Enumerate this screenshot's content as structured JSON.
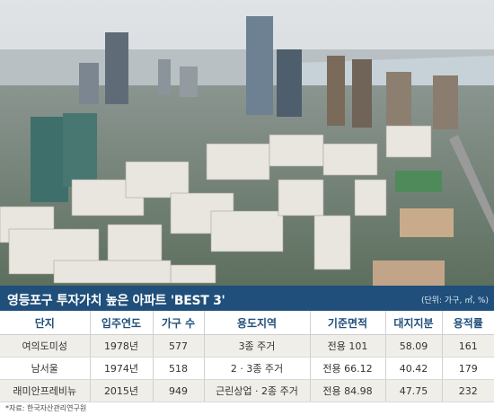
{
  "headline": {
    "title": "영등포구 투자가치 높은 아파트 'BEST 3'",
    "unit_note": "(단위: 가구, ㎡, %)"
  },
  "table": {
    "headers": [
      "단지",
      "입주연도",
      "가구 수",
      "용도지역",
      "기준면적",
      "대지지분",
      "용적률"
    ],
    "rows": [
      [
        "여의도미성",
        "1978년",
        "577",
        "3종 주거",
        "전용 101",
        "58.09",
        "161"
      ],
      [
        "남서울",
        "1974년",
        "518",
        "2 · 3종 주거",
        "전용 66.12",
        "40.42",
        "179"
      ],
      [
        "래미안프레비뉴",
        "2015년",
        "949",
        "근린상업 · 2종 주거",
        "전용 84.98",
        "47.75",
        "232"
      ]
    ]
  },
  "source": "*자료: 한국자산관리연구원",
  "colors": {
    "title_bar": "#1f4f7a",
    "header_text": "#1f4f7a",
    "stripe": "#efeee9"
  }
}
